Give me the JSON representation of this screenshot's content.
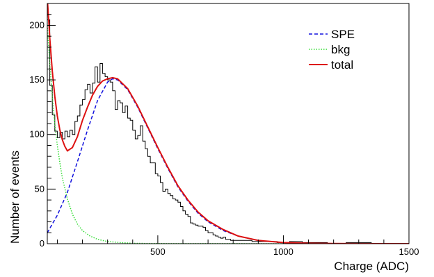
{
  "chart_data": {
    "type": "line",
    "title": "",
    "xlabel": "Charge (ADC)",
    "ylabel": "Number of events",
    "xlim": [
      60,
      1500
    ],
    "ylim": [
      0,
      220
    ],
    "xticks": [
      500,
      1000,
      1500
    ],
    "yticks": [
      0,
      50,
      100,
      150,
      200
    ],
    "grid": false,
    "legend_position": "top-right",
    "histogram": {
      "name": "",
      "color": "#000000",
      "x": [
        65,
        75,
        85,
        95,
        105,
        115,
        125,
        135,
        145,
        155,
        165,
        175,
        185,
        195,
        205,
        215,
        225,
        235,
        245,
        255,
        265,
        275,
        285,
        295,
        305,
        315,
        325,
        335,
        345,
        355,
        365,
        375,
        385,
        395,
        405,
        415,
        425,
        435,
        445,
        455,
        465,
        475,
        485,
        495,
        505,
        515,
        525,
        535,
        545,
        555,
        565,
        575,
        585,
        595,
        605,
        615,
        625,
        635,
        645,
        655,
        665,
        675,
        685,
        695,
        705,
        715,
        725,
        735,
        745,
        755,
        765,
        775,
        785,
        795,
        850,
        900,
        950,
        1000,
        1050,
        1100,
        1150,
        1200,
        1300,
        1400,
        1495
      ],
      "y": [
        205,
        145,
        118,
        103,
        97,
        102,
        96,
        103,
        98,
        104,
        100,
        112,
        117,
        127,
        132,
        141,
        146,
        138,
        147,
        162,
        148,
        165,
        156,
        153,
        150,
        148,
        140,
        123,
        131,
        129,
        120,
        126,
        115,
        113,
        104,
        96,
        99,
        108,
        94,
        87,
        80,
        74,
        74,
        64,
        62,
        56,
        48,
        50,
        46,
        44,
        41,
        40,
        38,
        34,
        30,
        27,
        25,
        19,
        18,
        17,
        16,
        16,
        15,
        12,
        10,
        10,
        8,
        7,
        6,
        5,
        6,
        4,
        4,
        3,
        3,
        2,
        2,
        1,
        2,
        1,
        1,
        0,
        1,
        0,
        0
      ]
    },
    "series": [
      {
        "name": "SPE",
        "color": "#1010dd",
        "dash": "dashed",
        "x": [
          60,
          100,
          140,
          180,
          220,
          260,
          300,
          320,
          340,
          380,
          420,
          460,
          500,
          540,
          580,
          620,
          660,
          700,
          760,
          820,
          900,
          1000,
          1100,
          1200,
          1350,
          1500
        ],
        "y": [
          10,
          26,
          47,
          75,
          104,
          131,
          148,
          151,
          150,
          141,
          125,
          106,
          87,
          69,
          52,
          39,
          28,
          20,
          12,
          7,
          3,
          1,
          0.4,
          0.1,
          0,
          0
        ]
      },
      {
        "name": "bkg",
        "color": "#33dd33",
        "dash": "dotted",
        "x": [
          60,
          70,
          80,
          90,
          100,
          110,
          120,
          140,
          160,
          180,
          200,
          230,
          260,
          300,
          350,
          400,
          500,
          1000,
          1500
        ],
        "y": [
          200,
          165,
          135,
          110,
          90,
          74,
          60,
          41,
          27,
          18,
          12,
          7,
          4,
          2,
          1,
          0.4,
          0.1,
          0,
          0
        ]
      },
      {
        "name": "total",
        "color": "#dd1111",
        "dash": "solid",
        "x": [
          60,
          70,
          80,
          90,
          100,
          110,
          120,
          130,
          140,
          160,
          180,
          200,
          220,
          240,
          260,
          280,
          300,
          320,
          340,
          380,
          420,
          460,
          500,
          540,
          580,
          620,
          660,
          700,
          760,
          820,
          900,
          1000,
          1100,
          1200,
          1350,
          1500
        ],
        "y": [
          225,
          188,
          158,
          135,
          117,
          104,
          95,
          89,
          85,
          88,
          98,
          113,
          125,
          136,
          144,
          149,
          151,
          152,
          151,
          142,
          126,
          107,
          88,
          70,
          53,
          40,
          29,
          21,
          13,
          7,
          3,
          1,
          0.4,
          0.1,
          0,
          0
        ]
      }
    ]
  }
}
